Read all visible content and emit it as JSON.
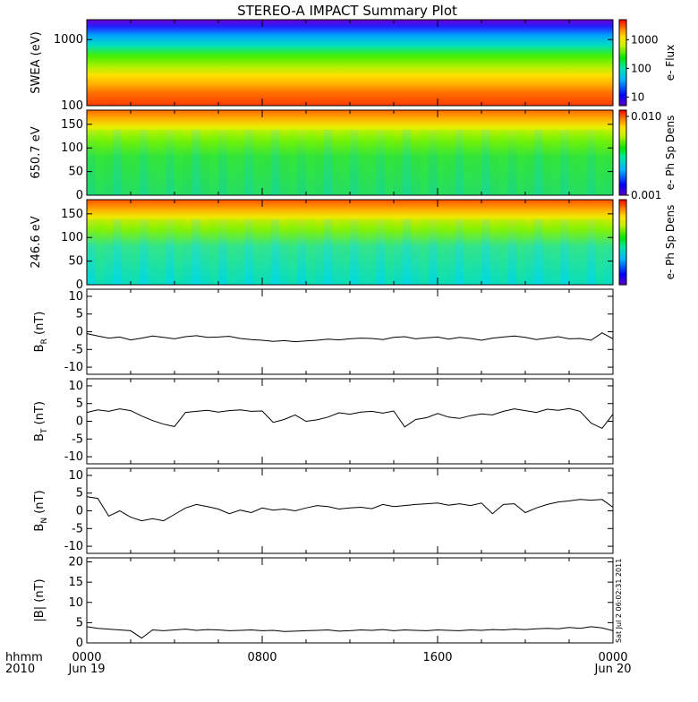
{
  "title": "STEREO-A IMPACT Summary Plot",
  "time_axis": {
    "row1_label": "hhmm",
    "row2_label": "2010",
    "ticks": [
      {
        "hour": 0,
        "label": "0000",
        "date": "Jun 19"
      },
      {
        "hour": 8,
        "label": "0800",
        "date": ""
      },
      {
        "hour": 16,
        "label": "1600",
        "date": ""
      },
      {
        "hour": 24,
        "label": "0000",
        "date": "Jun 20"
      }
    ]
  },
  "stamp": "Sat Jul  2 06:02:31 2011",
  "chart_data": [
    {
      "type": "heatmap",
      "ylabel": "SWEA (eV)",
      "yscale": "log",
      "ylim": [
        100,
        2000
      ],
      "yticks": [
        {
          "v": 100,
          "label": "100"
        },
        {
          "v": 1000,
          "label": "1000"
        }
      ],
      "colorbar": {
        "label": "e- Flux",
        "scale": "log",
        "range": [
          5,
          5000
        ],
        "ticks": [
          {
            "v": 10,
            "label": "10"
          },
          {
            "v": 100,
            "label": "100"
          },
          {
            "v": 1000,
            "label": "1000"
          }
        ]
      }
    },
    {
      "type": "heatmap",
      "ylabel": "650.7 eV",
      "ylim": [
        0,
        180
      ],
      "yticks": [
        {
          "v": 0,
          "label": "0"
        },
        {
          "v": 50,
          "label": "50"
        },
        {
          "v": 100,
          "label": "100"
        },
        {
          "v": 150,
          "label": "150"
        }
      ],
      "colorbar": {
        "label": "e- Ph Sp Dens",
        "scale": "log",
        "range": [
          0.001,
          0.012
        ],
        "ticks": [
          {
            "v": 0.001,
            "label": "0.001"
          },
          {
            "v": 0.01,
            "label": "0.010"
          }
        ]
      }
    },
    {
      "type": "heatmap",
      "ylabel": "246.6 eV",
      "ylim": [
        0,
        180
      ],
      "yticks": [
        {
          "v": 0,
          "label": "0"
        },
        {
          "v": 50,
          "label": "50"
        },
        {
          "v": 100,
          "label": "100"
        },
        {
          "v": 150,
          "label": "150"
        }
      ],
      "colorbar": {
        "label": "e- Ph Sp Dens",
        "scale": "log",
        "range": [
          0.001,
          0.012
        ],
        "ticks": []
      }
    },
    {
      "type": "line",
      "ylabel": "B_R (nT)",
      "ylabel_main": "B",
      "ylabel_sub": "R",
      "ylabel_unit": "(nT)",
      "ylim": [
        -12,
        12
      ],
      "yticks": [
        {
          "v": -10,
          "label": "-10"
        },
        {
          "v": -5,
          "label": "-5"
        },
        {
          "v": 0,
          "label": "0"
        },
        {
          "v": 5,
          "label": "5"
        },
        {
          "v": 10,
          "label": "10"
        }
      ],
      "x": [
        0,
        0.5,
        1,
        1.5,
        2,
        2.5,
        3,
        3.5,
        4,
        4.5,
        5,
        5.5,
        6,
        6.5,
        7,
        7.5,
        8,
        8.5,
        9,
        9.5,
        10,
        10.5,
        11,
        11.5,
        12,
        12.5,
        13,
        13.5,
        14,
        14.5,
        15,
        15.5,
        16,
        16.5,
        17,
        17.5,
        18,
        18.5,
        19,
        19.5,
        20,
        20.5,
        21,
        21.5,
        22,
        22.5,
        23,
        23.5,
        24
      ],
      "values": [
        -0.5,
        -1.2,
        -1.8,
        -1.5,
        -2.3,
        -1.8,
        -1.2,
        -1.6,
        -2.0,
        -1.4,
        -1.1,
        -1.6,
        -1.5,
        -1.3,
        -1.9,
        -2.2,
        -2.4,
        -2.7,
        -2.5,
        -2.8,
        -2.6,
        -2.4,
        -2.1,
        -2.3,
        -2.0,
        -1.8,
        -1.9,
        -2.2,
        -1.6,
        -1.4,
        -2.0,
        -1.7,
        -1.5,
        -2.1,
        -1.6,
        -1.9,
        -2.4,
        -1.8,
        -1.5,
        -1.2,
        -1.6,
        -2.2,
        -1.8,
        -1.4,
        -2.0,
        -1.9,
        -2.4,
        -0.3,
        -2.0
      ]
    },
    {
      "type": "line",
      "ylabel": "B_T (nT)",
      "ylabel_main": "B",
      "ylabel_sub": "T",
      "ylabel_unit": "(nT)",
      "ylim": [
        -12,
        12
      ],
      "yticks": [
        {
          "v": -10,
          "label": "-10"
        },
        {
          "v": -5,
          "label": "-5"
        },
        {
          "v": 0,
          "label": "0"
        },
        {
          "v": 5,
          "label": "5"
        },
        {
          "v": 10,
          "label": "10"
        }
      ],
      "x": [
        0,
        0.5,
        1,
        1.5,
        2,
        2.5,
        3,
        3.5,
        4,
        4.5,
        5,
        5.5,
        6,
        6.5,
        7,
        7.5,
        8,
        8.5,
        9,
        9.5,
        10,
        10.5,
        11,
        11.5,
        12,
        12.5,
        13,
        13.5,
        14,
        14.5,
        15,
        15.5,
        16,
        16.5,
        17,
        17.5,
        18,
        18.5,
        19,
        19.5,
        20,
        20.5,
        21,
        21.5,
        22,
        22.5,
        23,
        23.5,
        24
      ],
      "values": [
        2.5,
        3.2,
        2.8,
        3.5,
        3.0,
        1.5,
        0.2,
        -0.8,
        -1.5,
        2.5,
        2.8,
        3.1,
        2.6,
        3.0,
        3.2,
        2.8,
        2.9,
        -0.3,
        0.5,
        1.8,
        0.0,
        0.4,
        1.2,
        2.4,
        2.0,
        2.6,
        2.8,
        2.3,
        2.9,
        -1.6,
        0.5,
        1.0,
        2.2,
        1.2,
        0.8,
        1.6,
        2.1,
        1.8,
        2.8,
        3.5,
        3.0,
        2.5,
        3.4,
        3.1,
        3.6,
        2.8,
        -0.5,
        -2.0,
        2.0
      ]
    },
    {
      "type": "line",
      "ylabel": "B_N (nT)",
      "ylabel_main": "B",
      "ylabel_sub": "N",
      "ylabel_unit": "(nT)",
      "ylim": [
        -12,
        12
      ],
      "yticks": [
        {
          "v": -10,
          "label": "-10"
        },
        {
          "v": -5,
          "label": "-5"
        },
        {
          "v": 0,
          "label": "0"
        },
        {
          "v": 5,
          "label": "5"
        },
        {
          "v": 10,
          "label": "10"
        }
      ],
      "x": [
        0,
        0.5,
        1,
        1.5,
        2,
        2.5,
        3,
        3.5,
        4,
        4.5,
        5,
        5.5,
        6,
        6.5,
        7,
        7.5,
        8,
        8.5,
        9,
        9.5,
        10,
        10.5,
        11,
        11.5,
        12,
        12.5,
        13,
        13.5,
        14,
        14.5,
        15,
        15.5,
        16,
        16.5,
        17,
        17.5,
        18,
        18.5,
        19,
        19.5,
        20,
        20.5,
        21,
        21.5,
        22,
        22.5,
        23,
        23.5,
        24
      ],
      "values": [
        4.0,
        3.5,
        -1.5,
        0.0,
        -1.8,
        -2.8,
        -2.2,
        -2.8,
        -1.0,
        0.8,
        1.8,
        1.2,
        0.5,
        -0.8,
        0.2,
        -0.5,
        0.8,
        0.2,
        0.5,
        0.0,
        0.8,
        1.5,
        1.2,
        0.5,
        0.8,
        1.0,
        0.6,
        1.8,
        1.2,
        1.5,
        1.8,
        2.0,
        2.2,
        1.6,
        2.0,
        1.5,
        2.2,
        -0.8,
        1.8,
        2.0,
        -0.5,
        0.8,
        1.8,
        2.5,
        2.8,
        3.2,
        3.0,
        3.2,
        1.0
      ]
    },
    {
      "type": "line",
      "ylabel": "|B| (nT)",
      "ylabel_main": "|B|",
      "ylabel_sub": "",
      "ylabel_unit": "(nT)",
      "ylim": [
        0,
        21
      ],
      "yticks": [
        {
          "v": 0,
          "label": "0"
        },
        {
          "v": 5,
          "label": "5"
        },
        {
          "v": 10,
          "label": "10"
        },
        {
          "v": 15,
          "label": "15"
        },
        {
          "v": 20,
          "label": "20"
        }
      ],
      "x": [
        0,
        0.5,
        1,
        1.5,
        2,
        2.5,
        3,
        3.5,
        4,
        4.5,
        5,
        5.5,
        6,
        6.5,
        7,
        7.5,
        8,
        8.5,
        9,
        9.5,
        10,
        10.5,
        11,
        11.5,
        12,
        12.5,
        13,
        13.5,
        14,
        14.5,
        15,
        15.5,
        16,
        16.5,
        17,
        17.5,
        18,
        18.5,
        19,
        19.5,
        20,
        20.5,
        21,
        21.5,
        22,
        22.5,
        23,
        23.5,
        24
      ],
      "values": [
        4.0,
        3.6,
        3.4,
        3.2,
        3.0,
        1.2,
        3.2,
        3.0,
        3.2,
        3.4,
        3.1,
        3.3,
        3.2,
        3.0,
        3.1,
        3.2,
        3.0,
        3.1,
        2.8,
        2.9,
        3.0,
        3.1,
        3.2,
        2.9,
        3.0,
        3.2,
        3.1,
        3.3,
        3.0,
        3.2,
        3.1,
        3.0,
        3.2,
        3.1,
        3.0,
        3.2,
        3.1,
        3.3,
        3.2,
        3.4,
        3.3,
        3.5,
        3.6,
        3.5,
        3.8,
        3.6,
        4.0,
        3.7,
        3.0
      ]
    }
  ]
}
